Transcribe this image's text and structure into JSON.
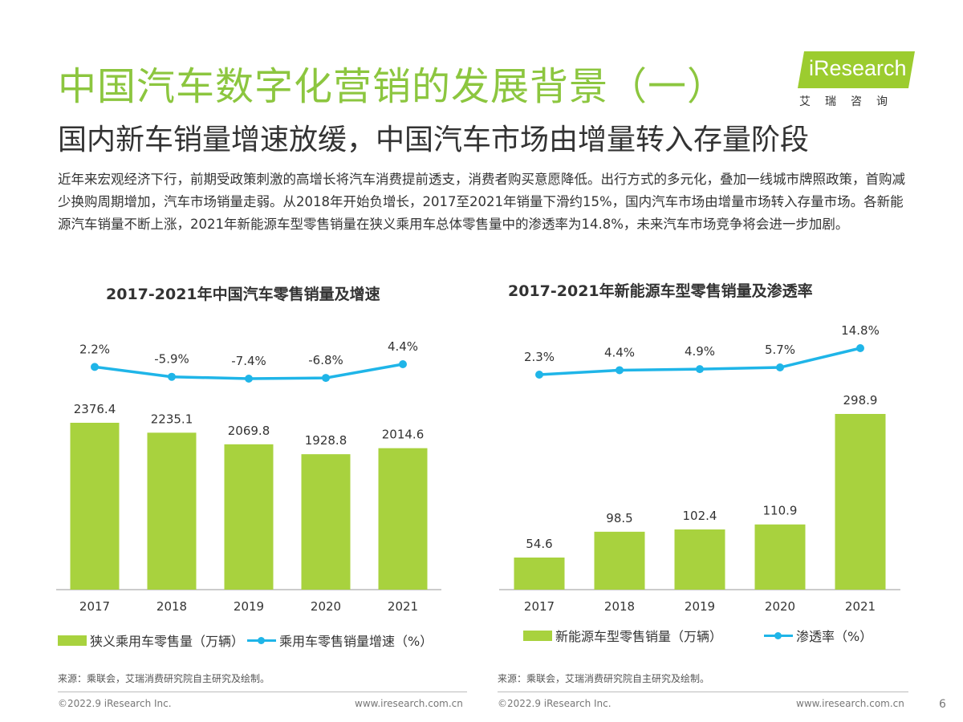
{
  "header": {
    "title": "中国汽车数字化营销的发展背景（一）",
    "subtitle": "国内新车销量增速放缓，中国汽车市场由增量转入存量阶段",
    "paragraph": "近年来宏观经济下行，前期受政策刺激的高增长将汽车消费提前透支，消费者购买意愿降低。出行方式的多元化，叠加一线城市牌照政策，首购减少换购周期增加，汽车市场销量走弱。从2018年开始负增长，2017至2021年销量下滑约15%，国内汽车市场由增量市场转入存量市场。各新能源汽车销量不断上涨，2021年新能源车型零售销量在狭义乘用车总体零售量中的渗透率为14.8%，未来汽车市场竞争将会进一步加剧。"
  },
  "logo": {
    "text": "iResearch",
    "subtext": "艾瑞咨询"
  },
  "colors": {
    "green": "#8cc63f",
    "bar": "#a8d23e",
    "line": "#1fb5e8",
    "logo_green": "#9ccc2f"
  },
  "chart_data": [
    {
      "type": "bar",
      "title": "2017-2021年中国汽车零售销量及增速",
      "categories": [
        "2017",
        "2018",
        "2019",
        "2020",
        "2021"
      ],
      "series": [
        {
          "name": "狭义乘用车零售量（万辆）",
          "type": "bar",
          "values": [
            2376.4,
            2235.1,
            2069.8,
            1928.8,
            2014.6
          ],
          "labels": [
            "2376.4",
            "2235.1",
            "2069.8",
            "1928.8",
            "2014.6"
          ]
        },
        {
          "name": "乘用车零售销量增速（%）",
          "type": "line",
          "values": [
            2.2,
            -5.9,
            -7.4,
            -6.8,
            4.4
          ],
          "labels": [
            "2.2%",
            "-5.9%",
            "-7.4%",
            "-6.8%",
            "4.4%"
          ]
        }
      ],
      "source": "来源：乘联会，艾瑞消费研究院自主研究及绘制。"
    },
    {
      "type": "bar",
      "title": "2017-2021年新能源车型零售销量及渗透率",
      "categories": [
        "2017",
        "2018",
        "2019",
        "2020",
        "2021"
      ],
      "series": [
        {
          "name": "新能源车型零售销量（万辆）",
          "type": "bar",
          "values": [
            54.6,
            98.5,
            102.4,
            110.9,
            298.9
          ],
          "labels": [
            "54.6",
            "98.5",
            "102.4",
            "110.9",
            "298.9"
          ]
        },
        {
          "name": "渗透率（%）",
          "type": "line",
          "values": [
            2.3,
            4.4,
            4.9,
            5.7,
            14.8
          ],
          "labels": [
            "2.3%",
            "4.4%",
            "4.9%",
            "5.7%",
            "14.8%"
          ]
        }
      ],
      "source": "来源：乘联会，艾瑞消费研究院自主研究及绘制。"
    }
  ],
  "footer": {
    "copyright": "©2022.9 iResearch Inc.",
    "website": "www.iresearch.com.cn",
    "page": "6"
  }
}
